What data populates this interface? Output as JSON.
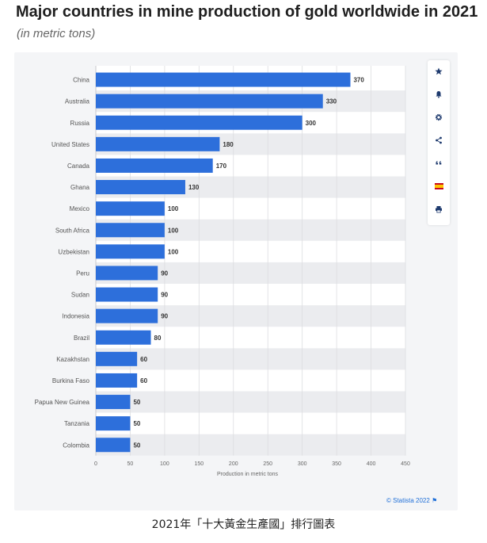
{
  "header": {
    "title": "Major countries in mine production of gold worldwide in 2021",
    "subtitle": "(in metric tons)"
  },
  "toolbar": {
    "icons": [
      "star-icon",
      "bell-icon",
      "gear-icon",
      "share-icon",
      "quote-icon",
      "flag-es-icon",
      "print-icon"
    ]
  },
  "credit": "© Statista 2022",
  "caption": "2021年「十大黃金生產國」排行圖表",
  "colors": {
    "bar": "#2d6fdb",
    "band": "#ebecef",
    "grid": "#dcdde0"
  },
  "chart_data": {
    "type": "bar",
    "orientation": "horizontal",
    "title": "Major countries in mine production of gold worldwide in 2021",
    "subtitle": "(in metric tons)",
    "xlabel": "Production in metric tons",
    "ylabel": "",
    "xlim": [
      0,
      450
    ],
    "xticks": [
      0,
      50,
      100,
      150,
      200,
      250,
      300,
      350,
      400,
      450
    ],
    "grid": true,
    "categories": [
      "China",
      "Australia",
      "Russia",
      "United States",
      "Canada",
      "Ghana",
      "Mexico",
      "South Africa",
      "Uzbekistan",
      "Peru",
      "Sudan",
      "Indonesia",
      "Brazil",
      "Kazakhstan",
      "Burkina Faso",
      "Papua New Guinea",
      "Tanzania",
      "Colombia"
    ],
    "values": [
      370,
      330,
      300,
      180,
      170,
      130,
      100,
      100,
      100,
      90,
      90,
      90,
      80,
      60,
      60,
      50,
      50,
      50
    ]
  }
}
